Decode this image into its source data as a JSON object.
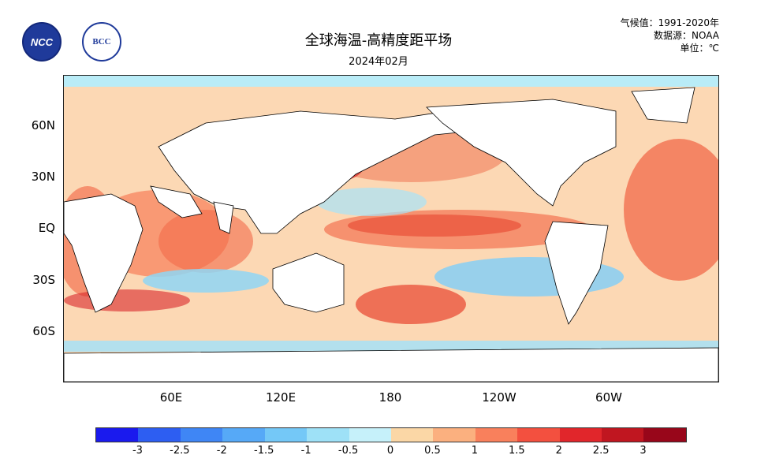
{
  "header": {
    "title": "全球海温-高精度距平场",
    "subtitle": "2024年02月",
    "climatology": "气候值：1991-2020年",
    "source": "数据源：NOAA",
    "unit": "单位：℃"
  },
  "logos": {
    "ncc": "NCC",
    "bcc": "BCC"
  },
  "axes": {
    "lat_labels": [
      "60N",
      "30N",
      "EQ",
      "30S",
      "60S"
    ],
    "lon_labels": [
      "60E",
      "120E",
      "180",
      "120W",
      "60W"
    ]
  },
  "legend": {
    "tick_labels": [
      "-3",
      "-2.5",
      "-2",
      "-1.5",
      "-1",
      "-0.5",
      "0",
      "0.5",
      "1",
      "1.5",
      "2",
      "2.5",
      "3"
    ],
    "colors": [
      "#1a1aee",
      "#2d5ef2",
      "#3f86f5",
      "#56a9f7",
      "#74c8f7",
      "#9ee1f7",
      "#c6f1fa",
      "#fbd7a6",
      "#fbb07f",
      "#f9805c",
      "#f3503f",
      "#e1262b",
      "#c01620",
      "#98061a"
    ]
  },
  "fill_colors": {
    "land": "#ffffff",
    "ocean_mild": "#fce0c4"
  }
}
